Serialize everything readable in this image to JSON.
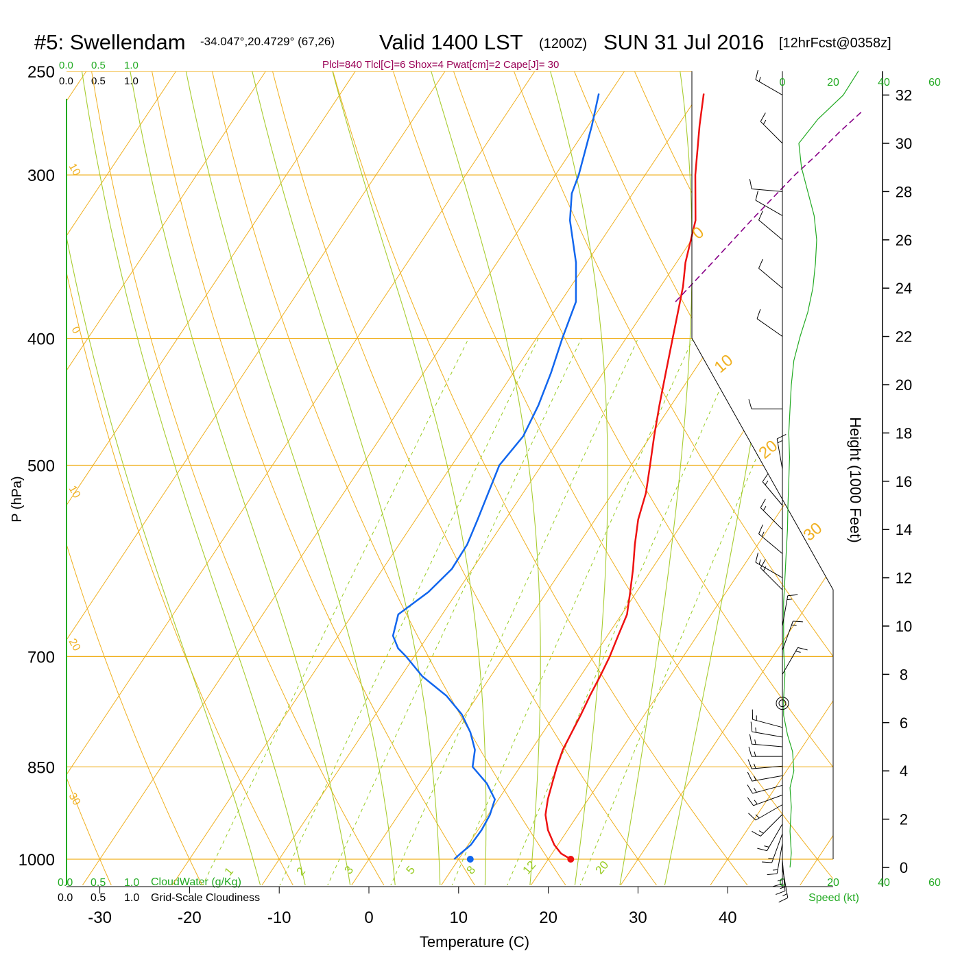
{
  "header": {
    "station": "#5: Swellendam",
    "coords": "-34.047°,20.4729° (67,26)",
    "valid": "Valid 1400 LST",
    "utc": "(1200Z)",
    "date": "SUN 31 Jul 2016",
    "fcst": "[12hrFcst@0358z]",
    "indices": "Plcl=840 Tlcl[C]=6 Shox=4 Pwat[cm]=2 Cape[J]= 30"
  },
  "legends": {
    "cloudwater_ticks": [
      "0.0",
      "0.5",
      "1.0"
    ],
    "cloudwater_label": "CloudWater (g/Kg)",
    "cloudiness_ticks": [
      "0.0",
      "0.5",
      "1.0"
    ],
    "cloudiness_label": "Grid-Scale Cloudiness"
  },
  "colors": {
    "temperature": "#ee1111",
    "dewpoint": "#1166ee",
    "parcel": "#880088",
    "isotherm": "#f0b020",
    "moist_adiabat": "#a8cc30",
    "mixing_ratio": "#99cc22",
    "speed": "#22aa22",
    "text_green": "#22aa22",
    "text_maroon": "#990055"
  },
  "chart_data": {
    "type": "skew-t",
    "xlabel": "Temperature (C)",
    "ylabel": "P (hPa)",
    "x_ticks": [
      -30,
      -20,
      -10,
      0,
      10,
      20,
      30,
      40
    ],
    "p_ticks": [
      250,
      300,
      400,
      500,
      700,
      850,
      1000
    ],
    "isotherm_labels": [
      {
        "t": -30,
        "text": "-30"
      },
      {
        "t": -20,
        "text": "-20"
      },
      {
        "t": -10,
        "text": "-10"
      },
      {
        "t": 0,
        "text": "0"
      },
      {
        "t": 10,
        "text": "10"
      },
      {
        "t": 20,
        "text": "20"
      },
      {
        "t": 30,
        "text": "30"
      },
      {
        "t": 10,
        "text": "10",
        "upper": true
      },
      {
        "t": 0,
        "text": "0",
        "upper": true
      }
    ],
    "mixing_ratio_labels": [
      "1",
      "2",
      "3",
      "5",
      "8",
      "12",
      "20"
    ],
    "mixing_ratio_values": [
      1,
      2,
      3,
      5,
      8,
      12,
      20
    ],
    "temperature_profile": [
      [
        1000,
        22.5
      ],
      [
        990,
        21.0
      ],
      [
        975,
        19.6
      ],
      [
        950,
        17.8
      ],
      [
        925,
        16.4
      ],
      [
        900,
        15.5
      ],
      [
        875,
        14.8
      ],
      [
        850,
        14.1
      ],
      [
        825,
        13.5
      ],
      [
        800,
        13.2
      ],
      [
        775,
        12.9
      ],
      [
        750,
        12.5
      ],
      [
        725,
        12.2
      ],
      [
        700,
        11.8
      ],
      [
        675,
        11.2
      ],
      [
        650,
        10.6
      ],
      [
        625,
        9.3
      ],
      [
        600,
        7.9
      ],
      [
        575,
        6.3
      ],
      [
        550,
        4.8
      ],
      [
        525,
        3.7
      ],
      [
        500,
        2.1
      ],
      [
        475,
        0.4
      ],
      [
        450,
        -1.3
      ],
      [
        425,
        -3.0
      ],
      [
        400,
        -4.8
      ],
      [
        380,
        -6.3
      ],
      [
        365,
        -7.5
      ],
      [
        350,
        -9.0
      ],
      [
        325,
        -11.0
      ],
      [
        300,
        -14.4
      ],
      [
        275,
        -17.6
      ],
      [
        260,
        -19.5
      ]
    ],
    "dewpoint_profile": [
      [
        1000,
        9.5
      ],
      [
        990,
        9.8
      ],
      [
        975,
        10.3
      ],
      [
        950,
        10.4
      ],
      [
        925,
        10.2
      ],
      [
        900,
        9.6
      ],
      [
        875,
        7.5
      ],
      [
        850,
        4.7
      ],
      [
        825,
        3.7
      ],
      [
        800,
        1.9
      ],
      [
        775,
        -0.4
      ],
      [
        750,
        -3.5
      ],
      [
        725,
        -7.6
      ],
      [
        700,
        -10.9
      ],
      [
        690,
        -12.4
      ],
      [
        675,
        -13.9
      ],
      [
        650,
        -14.9
      ],
      [
        625,
        -13.2
      ],
      [
        600,
        -12.3
      ],
      [
        575,
        -12.4
      ],
      [
        550,
        -13.1
      ],
      [
        500,
        -14.7
      ],
      [
        475,
        -14.2
      ],
      [
        450,
        -14.8
      ],
      [
        425,
        -15.8
      ],
      [
        400,
        -17.1
      ],
      [
        375,
        -18.3
      ],
      [
        350,
        -21.2
      ],
      [
        325,
        -25.0
      ],
      [
        310,
        -26.8
      ],
      [
        300,
        -27.4
      ],
      [
        275,
        -29.6
      ],
      [
        260,
        -31.2
      ]
    ],
    "parcel_profile": [
      [
        375,
        -7.2
      ],
      [
        350,
        -6.0
      ],
      [
        325,
        -4.8
      ],
      [
        300,
        -3.3
      ],
      [
        290,
        -2.4
      ],
      [
        278,
        -1.5
      ],
      [
        268,
        -0.5
      ]
    ],
    "surface_temperature": 22.5,
    "surface_dewpoint": 11.3,
    "height_axis": {
      "label": "Height (1000 Feet)",
      "ticks": [
        0,
        2,
        4,
        6,
        8,
        10,
        12,
        14,
        16,
        18,
        20,
        22,
        24,
        26,
        28,
        30,
        32
      ]
    },
    "speed_axis": {
      "label": "Speed (kt)",
      "ticks": [
        0,
        20,
        40,
        60
      ]
    },
    "speed_profile": [
      [
        0,
        3
      ],
      [
        0.6,
        3.5
      ],
      [
        1.5,
        3
      ],
      [
        2.5,
        3.5
      ],
      [
        3.3,
        3
      ],
      [
        4,
        4.5
      ],
      [
        4.8,
        4
      ],
      [
        5.5,
        2
      ],
      [
        6.3,
        0.5
      ],
      [
        7,
        0.5
      ],
      [
        8,
        1
      ],
      [
        9,
        0.5
      ],
      [
        10,
        0.5
      ],
      [
        11,
        0.5
      ],
      [
        12,
        1
      ],
      [
        13,
        1.5
      ],
      [
        14,
        2
      ],
      [
        15,
        2.2
      ],
      [
        16,
        2.5
      ],
      [
        17,
        2.8
      ],
      [
        18,
        2.5
      ],
      [
        19,
        3
      ],
      [
        20,
        3.5
      ],
      [
        21,
        4.5
      ],
      [
        22,
        7
      ],
      [
        23,
        10
      ],
      [
        24,
        12
      ],
      [
        25,
        13
      ],
      [
        26,
        13.5
      ],
      [
        27,
        12.5
      ],
      [
        28,
        10
      ],
      [
        29,
        7.5
      ],
      [
        30,
        6.5
      ],
      [
        31,
        14
      ],
      [
        32,
        24
      ],
      [
        33,
        30
      ]
    ],
    "wind_barbs": [
      {
        "h": 0.0,
        "dir": 170,
        "spd": 5
      },
      {
        "h": 0.3,
        "dir": 175,
        "spd": 5
      },
      {
        "h": 0.6,
        "dir": 180,
        "spd": 5
      },
      {
        "h": 1.0,
        "dir": 190,
        "spd": 5
      },
      {
        "h": 1.4,
        "dir": 200,
        "spd": 5
      },
      {
        "h": 1.8,
        "dir": 210,
        "spd": 5
      },
      {
        "h": 2.2,
        "dir": 225,
        "spd": 5
      },
      {
        "h": 2.6,
        "dir": 240,
        "spd": 5
      },
      {
        "h": 3.0,
        "dir": 250,
        "spd": 5
      },
      {
        "h": 3.4,
        "dir": 255,
        "spd": 5
      },
      {
        "h": 3.8,
        "dir": 260,
        "spd": 5
      },
      {
        "h": 4.2,
        "dir": 265,
        "spd": 5
      },
      {
        "h": 4.6,
        "dir": 270,
        "spd": 5
      },
      {
        "h": 5.0,
        "dir": 275,
        "spd": 5
      },
      {
        "h": 5.4,
        "dir": 280,
        "spd": 5
      },
      {
        "h": 5.8,
        "dir": 285,
        "spd": 5
      },
      {
        "h": 8.0,
        "dir": 30,
        "spd": 5
      },
      {
        "h": 9.0,
        "dir": 20,
        "spd": 5
      },
      {
        "h": 10.0,
        "dir": 10,
        "spd": 5
      },
      {
        "h": 11.5,
        "dir": 315,
        "spd": 5
      },
      {
        "h": 12.0,
        "dir": 300,
        "spd": 5
      },
      {
        "h": 13.0,
        "dir": 310,
        "spd": 5
      },
      {
        "h": 14.0,
        "dir": 315,
        "spd": 5
      },
      {
        "h": 15.0,
        "dir": 320,
        "spd": 5
      },
      {
        "h": 16.5,
        "dir": 350,
        "spd": 5
      },
      {
        "h": 19.0,
        "dir": 270,
        "spd": 10
      },
      {
        "h": 22.0,
        "dir": 305,
        "spd": 10
      },
      {
        "h": 24.0,
        "dir": 310,
        "spd": 10
      },
      {
        "h": 26.0,
        "dir": 310,
        "spd": 10
      },
      {
        "h": 27.0,
        "dir": 300,
        "spd": 10
      },
      {
        "h": 28.0,
        "dir": 275,
        "spd": 10
      },
      {
        "h": 30.0,
        "dir": 315,
        "spd": 5
      },
      {
        "h": 32.0,
        "dir": 300,
        "spd": 5
      }
    ],
    "calm_marker_height": 6.8,
    "grid": true
  }
}
